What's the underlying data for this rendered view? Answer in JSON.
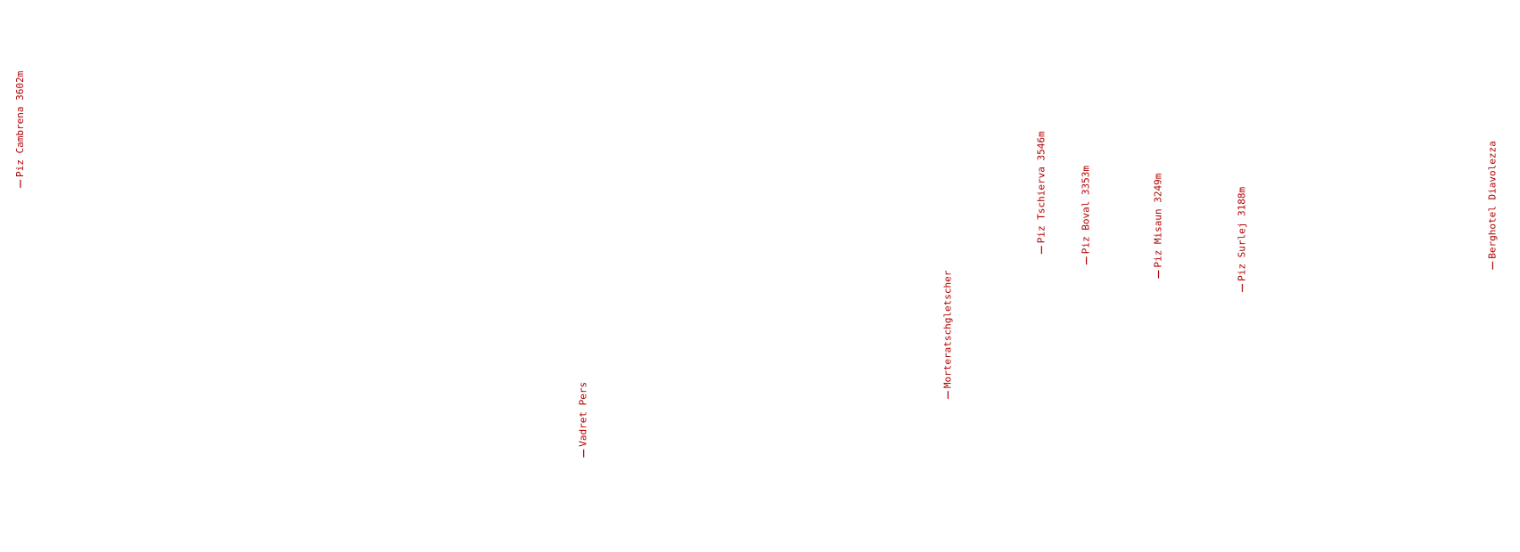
{
  "labels": [
    "Piz Cambrena 3602m",
    "Vadret Pers",
    "Morteratschgletscher",
    "Piz Tschierva 3546m",
    "Piz Boval 3353m",
    "Piz Misaun 3249m",
    "Piz Surlej 3188m",
    "Berghotel Diavolezza"
  ]
}
